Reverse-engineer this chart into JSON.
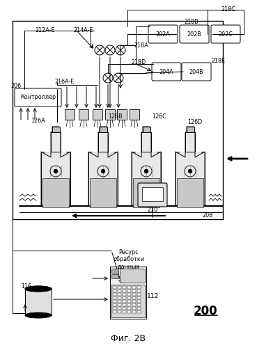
{
  "title": "Фиг. 2В",
  "ref_number": "200",
  "background_color": "#ffffff",
  "labels": {
    "212AE": "212A-E",
    "214AE": "214A-E",
    "216AE": "216A-E",
    "218A": "218A",
    "218B": "218B",
    "218C": "218C",
    "218D": "218D",
    "218E": "218E",
    "202A": "202A",
    "202B": "202B",
    "202C": "202C",
    "204A": "204A",
    "204B": "204B",
    "206": "206",
    "208": "208",
    "210": "210",
    "112": "112",
    "116": "116",
    "126A": "126A",
    "126B": "126B",
    "126C": "126C",
    "126D": "126D",
    "controller": "Контроллер",
    "resource": "Ресурс\nобработки\nданных"
  }
}
